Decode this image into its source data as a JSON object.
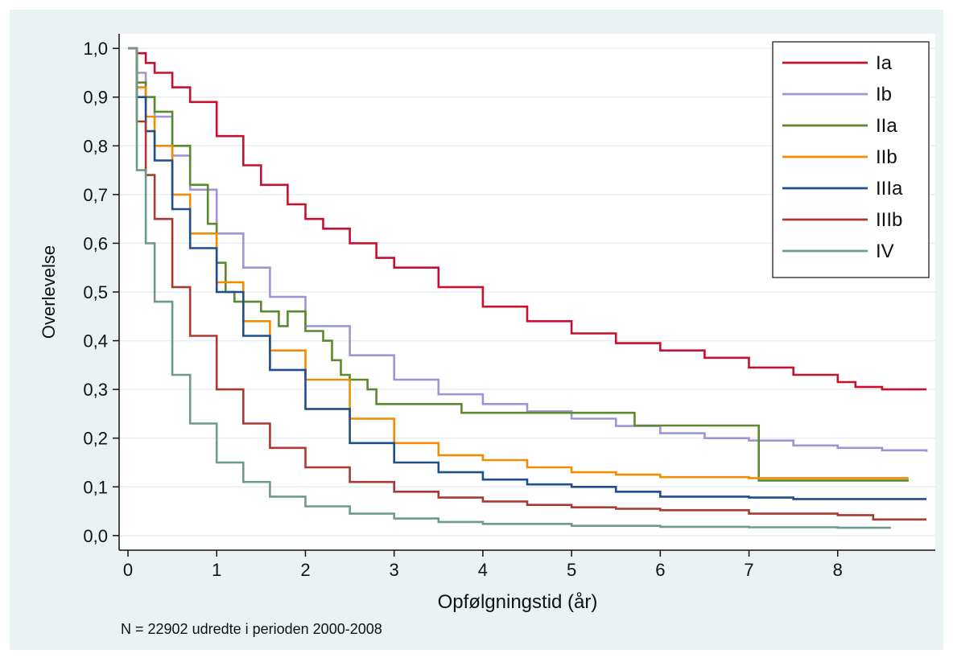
{
  "chart_data": {
    "type": "line",
    "xlabel": "Opfølgningstid (år)",
    "ylabel": "Overlevelse",
    "note": "N = 22902 udredte i perioden 2000-2008",
    "xlim": [
      -0.1,
      9.1
    ],
    "ylim": [
      -0.03,
      1.03
    ],
    "x_ticks": [
      0,
      1,
      2,
      3,
      4,
      5,
      6,
      7,
      8
    ],
    "x_tick_labels": [
      "0",
      "1",
      "2",
      "3",
      "4",
      "5",
      "6",
      "7",
      "8"
    ],
    "y_ticks": [
      0,
      0.1,
      0.2,
      0.3,
      0.4,
      0.5,
      0.6,
      0.7,
      0.8,
      0.9,
      1.0
    ],
    "y_tick_labels": [
      "0,0",
      "0,1",
      "0,2",
      "0,3",
      "0,4",
      "0,5",
      "0,6",
      "0,7",
      "0,8",
      "0,9",
      "1,0"
    ],
    "grid": "horizontal",
    "legend_position": "top-right",
    "series": [
      {
        "name": "Ia",
        "color": "#c8102e",
        "x": [
          0,
          0.1,
          0.2,
          0.3,
          0.5,
          0.7,
          1.0,
          1.3,
          1.5,
          1.8,
          2.0,
          2.2,
          2.5,
          2.8,
          3.0,
          3.5,
          4.0,
          4.5,
          5.0,
          5.5,
          6.0,
          6.5,
          7.0,
          7.5,
          8.0,
          8.2,
          8.5,
          9.0
        ],
        "y": [
          1.0,
          0.99,
          0.97,
          0.95,
          0.92,
          0.89,
          0.82,
          0.76,
          0.72,
          0.68,
          0.65,
          0.63,
          0.6,
          0.57,
          0.55,
          0.51,
          0.47,
          0.44,
          0.415,
          0.395,
          0.38,
          0.365,
          0.345,
          0.33,
          0.315,
          0.305,
          0.3,
          0.3
        ]
      },
      {
        "name": "Ib",
        "color": "#9c95d8",
        "x": [
          0,
          0.1,
          0.2,
          0.3,
          0.5,
          0.7,
          1.0,
          1.3,
          1.6,
          2.0,
          2.5,
          3.0,
          3.5,
          4.0,
          4.5,
          5.0,
          5.5,
          6.0,
          6.5,
          7.0,
          7.5,
          8.0,
          8.5,
          9.0
        ],
        "y": [
          1.0,
          0.95,
          0.9,
          0.86,
          0.78,
          0.71,
          0.62,
          0.55,
          0.49,
          0.43,
          0.37,
          0.32,
          0.29,
          0.27,
          0.255,
          0.24,
          0.225,
          0.21,
          0.2,
          0.195,
          0.185,
          0.18,
          0.175,
          0.172
        ]
      },
      {
        "name": "IIa",
        "color": "#5b8a2e",
        "x": [
          0,
          0.1,
          0.2,
          0.3,
          0.5,
          0.7,
          0.9,
          1.0,
          1.1,
          1.2,
          1.5,
          1.7,
          1.8,
          2.0,
          2.2,
          2.3,
          2.4,
          2.5,
          2.7,
          2.8,
          3.75,
          3.76,
          5.7,
          5.71,
          7.1,
          7.11,
          8.8
        ],
        "y": [
          1.0,
          0.93,
          0.9,
          0.87,
          0.8,
          0.72,
          0.64,
          0.56,
          0.5,
          0.48,
          0.46,
          0.43,
          0.46,
          0.42,
          0.4,
          0.36,
          0.33,
          0.32,
          0.3,
          0.27,
          0.27,
          0.252,
          0.252,
          0.226,
          0.226,
          0.113,
          0.113
        ]
      },
      {
        "name": "IIb",
        "color": "#f28c00",
        "x": [
          0,
          0.1,
          0.2,
          0.3,
          0.5,
          0.7,
          1.0,
          1.3,
          1.6,
          2.0,
          2.5,
          3.0,
          3.5,
          4.0,
          4.5,
          5.0,
          5.5,
          6.0,
          7.0,
          8.0,
          8.8
        ],
        "y": [
          1.0,
          0.92,
          0.86,
          0.8,
          0.7,
          0.62,
          0.52,
          0.44,
          0.38,
          0.32,
          0.24,
          0.19,
          0.165,
          0.155,
          0.14,
          0.13,
          0.125,
          0.12,
          0.118,
          0.118,
          0.118
        ]
      },
      {
        "name": "IIIa",
        "color": "#1f4e8c",
        "x": [
          0,
          0.1,
          0.2,
          0.3,
          0.5,
          0.7,
          1.0,
          1.3,
          1.6,
          2.0,
          2.5,
          3.0,
          3.5,
          4.0,
          4.5,
          5.0,
          5.5,
          6.0,
          7.0,
          7.5,
          8.0,
          9.0
        ],
        "y": [
          1.0,
          0.9,
          0.83,
          0.77,
          0.67,
          0.59,
          0.5,
          0.41,
          0.34,
          0.26,
          0.19,
          0.15,
          0.13,
          0.115,
          0.105,
          0.1,
          0.09,
          0.08,
          0.078,
          0.075,
          0.075,
          0.075
        ]
      },
      {
        "name": "IIIb",
        "color": "#a83a32",
        "x": [
          0,
          0.1,
          0.2,
          0.3,
          0.5,
          0.7,
          1.0,
          1.3,
          1.6,
          2.0,
          2.5,
          3.0,
          3.5,
          4.0,
          4.5,
          5.0,
          5.5,
          6.0,
          7.0,
          8.0,
          8.4,
          9.0
        ],
        "y": [
          1.0,
          0.85,
          0.74,
          0.65,
          0.51,
          0.41,
          0.3,
          0.23,
          0.18,
          0.14,
          0.11,
          0.09,
          0.078,
          0.07,
          0.063,
          0.058,
          0.055,
          0.052,
          0.045,
          0.042,
          0.033,
          0.033
        ]
      },
      {
        "name": "IV",
        "color": "#6e9a8c",
        "x": [
          0,
          0.1,
          0.2,
          0.3,
          0.5,
          0.7,
          1.0,
          1.3,
          1.6,
          2.0,
          2.5,
          3.0,
          3.5,
          4.0,
          5.0,
          6.0,
          7.0,
          8.0,
          8.6
        ],
        "y": [
          1.0,
          0.75,
          0.6,
          0.48,
          0.33,
          0.23,
          0.15,
          0.11,
          0.08,
          0.06,
          0.045,
          0.035,
          0.028,
          0.024,
          0.02,
          0.018,
          0.017,
          0.016,
          0.016
        ]
      }
    ]
  }
}
